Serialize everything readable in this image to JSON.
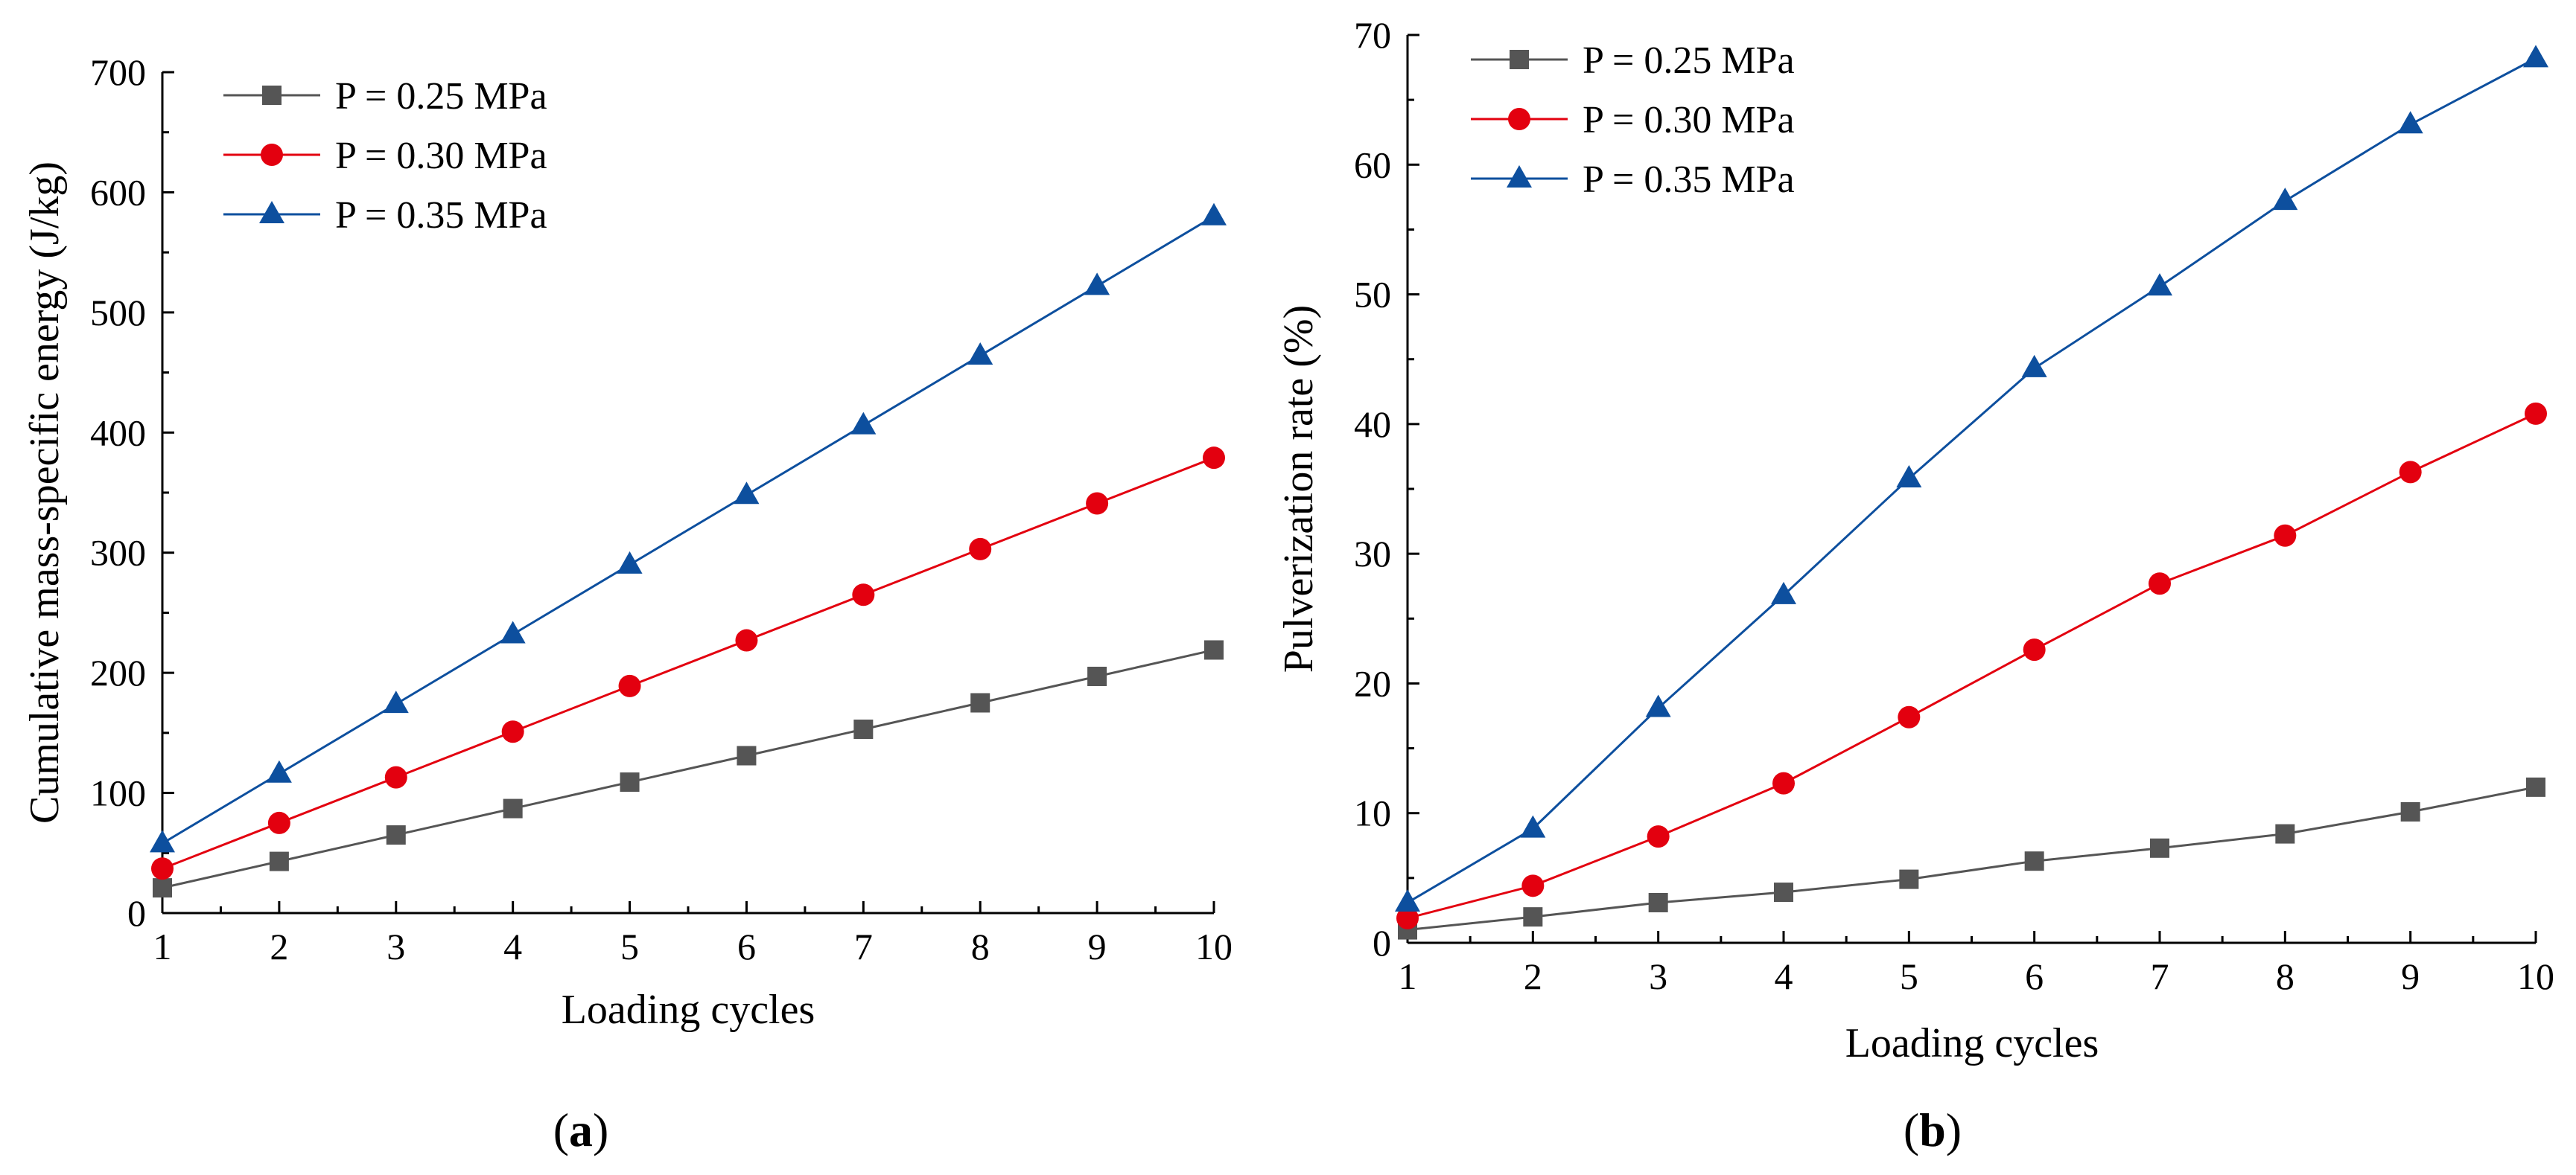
{
  "chart_data": [
    {
      "type": "line",
      "panel": "a",
      "panel_label": {
        "open": "(",
        "letter": "a",
        "close": ")"
      },
      "title": "",
      "xlabel": "Loading cycles",
      "ylabel": "Cumulative mass-specific energy (J/kg)",
      "xlim": [
        1,
        10
      ],
      "ylim": [
        0,
        700
      ],
      "xticks": [
        "1",
        "2",
        "3",
        "4",
        "5",
        "6",
        "7",
        "8",
        "9",
        "10"
      ],
      "yticks": [
        "0",
        "100",
        "200",
        "300",
        "400",
        "500",
        "600",
        "700"
      ],
      "legend_position": "top-left",
      "grid": false,
      "x": [
        1,
        2,
        3,
        4,
        5,
        6,
        7,
        8,
        9,
        10
      ],
      "series": [
        {
          "name": "P = 0.25 MPa",
          "color": "#555555",
          "marker": "square",
          "values": [
            21,
            43,
            65,
            87,
            109,
            131,
            153,
            175,
            197,
            219
          ]
        },
        {
          "name": "P = 0.30 MPa",
          "color": "#e3000f",
          "marker": "circle",
          "values": [
            37,
            75,
            113,
            151,
            189,
            227,
            265,
            303,
            341,
            379
          ]
        },
        {
          "name": "P = 0.35 MPa",
          "color": "#0d4f9e",
          "marker": "triangle",
          "values": [
            58,
            116,
            174,
            232,
            290,
            348,
            406,
            464,
            522,
            580
          ]
        }
      ]
    },
    {
      "type": "line",
      "panel": "b",
      "panel_label": {
        "open": "(",
        "letter": "b",
        "close": ")"
      },
      "title": "",
      "xlabel": "Loading cycles",
      "ylabel": "Pulverization rate (%)",
      "xlim": [
        1,
        10
      ],
      "ylim": [
        0,
        70
      ],
      "xticks": [
        "1",
        "2",
        "3",
        "4",
        "5",
        "6",
        "7",
        "8",
        "9",
        "10"
      ],
      "yticks": [
        "0",
        "10",
        "20",
        "30",
        "40",
        "50",
        "60",
        "70"
      ],
      "legend_position": "top-left",
      "grid": false,
      "x": [
        1,
        2,
        3,
        4,
        5,
        6,
        7,
        8,
        9,
        10
      ],
      "series": [
        {
          "name": "P = 0.25 MPa",
          "color": "#555555",
          "marker": "square",
          "values": [
            1.0,
            2.0,
            3.1,
            3.9,
            4.9,
            6.3,
            7.3,
            8.4,
            10.1,
            12.0
          ]
        },
        {
          "name": "P = 0.30 MPa",
          "color": "#e3000f",
          "marker": "circle",
          "values": [
            1.9,
            4.4,
            8.2,
            12.3,
            17.4,
            22.6,
            27.7,
            31.4,
            36.3,
            40.8
          ]
        },
        {
          "name": "P = 0.35 MPa",
          "color": "#0d4f9e",
          "marker": "triangle",
          "values": [
            3.1,
            8.8,
            18.1,
            26.8,
            35.8,
            44.3,
            50.6,
            57.2,
            63.1,
            68.2
          ]
        }
      ]
    }
  ]
}
